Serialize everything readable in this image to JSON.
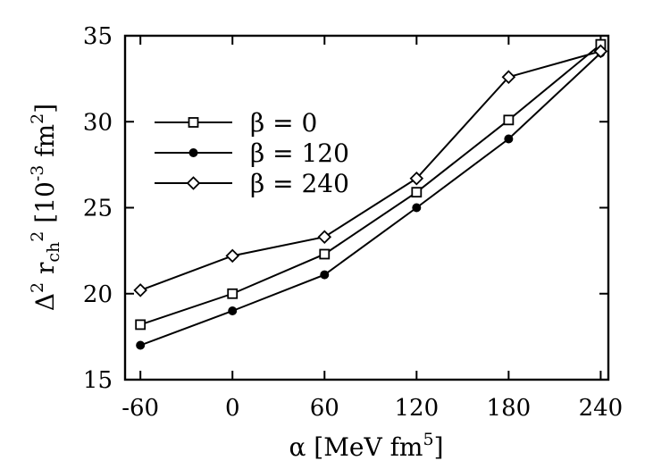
{
  "chart_data": {
    "type": "line",
    "x": [
      -60,
      0,
      60,
      120,
      180,
      240
    ],
    "xticks": [
      "-60",
      "0",
      "60",
      "120",
      "180",
      "240"
    ],
    "yticks": [
      "15",
      "20",
      "25",
      "30",
      "35"
    ],
    "xlim": [
      -70,
      245
    ],
    "ylim": [
      15,
      35
    ],
    "xlabel": {
      "main": "α [MeV fm",
      "sup": "5",
      "end": "]"
    },
    "ylabel": {
      "delta": "Δ",
      "sup1": "2",
      "r": " r",
      "sub": "ch",
      "sup2": "2",
      "units": " [10",
      "units_sup": "-3",
      "units_mid": " fm",
      "units_sup2": "2",
      "units_end": "]"
    },
    "legend_position": "upper-left",
    "series": [
      {
        "name": "β = 0",
        "marker": "square-open",
        "values": [
          18.2,
          20.0,
          22.3,
          25.9,
          30.1,
          34.5
        ]
      },
      {
        "name": "β = 120",
        "marker": "circle-filled",
        "values": [
          17.0,
          19.0,
          21.1,
          25.0,
          29.0,
          34.0
        ]
      },
      {
        "name": "β = 240",
        "marker": "diamond-open",
        "values": [
          20.2,
          22.2,
          23.3,
          26.7,
          32.6,
          34.1
        ]
      }
    ]
  }
}
